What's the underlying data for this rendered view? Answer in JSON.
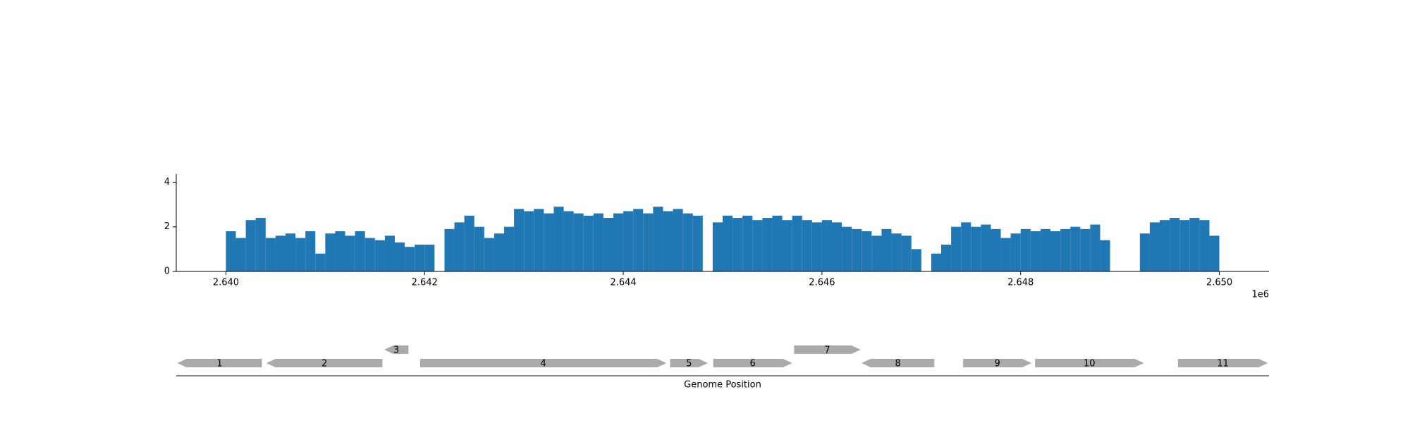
{
  "chart_data": [
    {
      "type": "histogram",
      "bins": [
        2640000,
        2640100,
        2640200,
        2640300,
        2640400,
        2640500,
        2640600,
        2640700,
        2640800,
        2640900,
        2641000,
        2641100,
        2641200,
        2641300,
        2641400,
        2641500,
        2641600,
        2641700,
        2641800,
        2641900,
        2642000,
        2642100,
        2642200,
        2642300,
        2642400,
        2642500,
        2642600,
        2642700,
        2642800,
        2642900,
        2643000,
        2643100,
        2643200,
        2643300,
        2643400,
        2643500,
        2643600,
        2643700,
        2643800,
        2643900,
        2644000,
        2644100,
        2644200,
        2644300,
        2644400,
        2644500,
        2644600,
        2644700,
        2644800,
        2644900,
        2645000,
        2645100,
        2645200,
        2645300,
        2645400,
        2645500,
        2645600,
        2645700,
        2645800,
        2645900,
        2646000,
        2646100,
        2646200,
        2646300,
        2646400,
        2646500,
        2646600,
        2646700,
        2646800,
        2646900,
        2647000,
        2647100,
        2647200,
        2647300,
        2647400,
        2647500,
        2647600,
        2647700,
        2647800,
        2647900,
        2648000,
        2648100,
        2648200,
        2648300,
        2648400,
        2648500,
        2648600,
        2648700,
        2648800,
        2648900,
        2649000,
        2649100,
        2649200,
        2649300,
        2649400,
        2649500,
        2649600,
        2649700,
        2649800,
        2649900,
        2650000
      ],
      "values": [
        1.8,
        1.5,
        2.3,
        2.4,
        1.5,
        1.6,
        1.7,
        1.5,
        1.8,
        0.8,
        1.7,
        1.8,
        1.6,
        1.8,
        1.5,
        1.4,
        1.6,
        1.3,
        1.1,
        1.2,
        1.2,
        0,
        1.9,
        2.2,
        2.5,
        2.0,
        1.5,
        1.7,
        2.0,
        2.8,
        2.7,
        2.8,
        2.6,
        2.9,
        2.7,
        2.6,
        2.5,
        2.6,
        2.4,
        2.6,
        2.7,
        2.8,
        2.6,
        2.9,
        2.7,
        2.8,
        2.6,
        2.5,
        0,
        2.2,
        2.5,
        2.4,
        2.5,
        2.3,
        2.4,
        2.5,
        2.3,
        2.5,
        2.3,
        2.2,
        2.3,
        2.2,
        2.0,
        1.9,
        1.8,
        1.6,
        1.9,
        1.7,
        1.6,
        1.0,
        0,
        0.8,
        1.2,
        2.0,
        2.2,
        2.0,
        2.1,
        1.9,
        1.5,
        1.7,
        1.9,
        1.8,
        1.9,
        1.8,
        1.9,
        2.0,
        1.9,
        2.1,
        1.4,
        0,
        0,
        0,
        1.7,
        2.2,
        2.3,
        2.4,
        2.3,
        2.4,
        2.3,
        1.6
      ],
      "color": "#1f77b4",
      "xlim": [
        2639500,
        2650500
      ],
      "xticks": [
        {
          "value": 2640000,
          "label": "2.640"
        },
        {
          "value": 2642000,
          "label": "2.642"
        },
        {
          "value": 2644000,
          "label": "2.644"
        },
        {
          "value": 2646000,
          "label": "2.646"
        },
        {
          "value": 2648000,
          "label": "2.648"
        },
        {
          "value": 2650000,
          "label": "2.650"
        }
      ],
      "x_offset_label": "1e6",
      "ylim": [
        0,
        4.36
      ],
      "yticks": [
        0,
        2,
        4
      ]
    },
    {
      "type": "gene-track",
      "xlabel": "Genome Position",
      "xlim": [
        2639500,
        2650500
      ],
      "color": "#aaaaaa",
      "genes": [
        {
          "label": "1",
          "start": 2639511,
          "end": 2640362,
          "strand": -1
        },
        {
          "label": "2",
          "start": 2640407,
          "end": 2641575,
          "strand": -1
        },
        {
          "label": "3",
          "start": 2641593,
          "end": 2641837,
          "strand": -1
        },
        {
          "label": "4",
          "start": 2641955,
          "end": 2644434,
          "strand": 1
        },
        {
          "label": "5",
          "start": 2644471,
          "end": 2644851,
          "strand": 1
        },
        {
          "label": "6",
          "start": 2644905,
          "end": 2645701,
          "strand": 1
        },
        {
          "label": "7",
          "start": 2645719,
          "end": 2646389,
          "strand": 1
        },
        {
          "label": "8",
          "start": 2646398,
          "end": 2647131,
          "strand": -1
        },
        {
          "label": "9",
          "start": 2647421,
          "end": 2648109,
          "strand": 1
        },
        {
          "label": "10",
          "start": 2648145,
          "end": 2649240,
          "strand": 1
        },
        {
          "label": "11",
          "start": 2649584,
          "end": 2650489,
          "strand": 1
        }
      ]
    }
  ]
}
